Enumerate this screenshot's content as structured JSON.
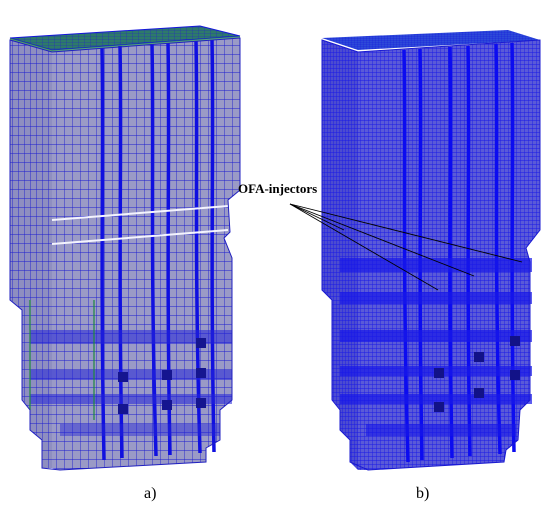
{
  "figure": {
    "panels": [
      {
        "id": "a",
        "caption": "a)"
      },
      {
        "id": "b",
        "caption": "b)"
      }
    ],
    "annotation": "OFA-injectors",
    "colors": {
      "mesh_fill_a": "#9797c4",
      "mesh_fill_b": "#3a3ae6",
      "mesh_line": "#1515dd",
      "top_green": "#1e8a3c",
      "top_blue": "#2a2ae0",
      "dark_cell": "#14148a",
      "white_band": "#f2f2ff"
    }
  }
}
